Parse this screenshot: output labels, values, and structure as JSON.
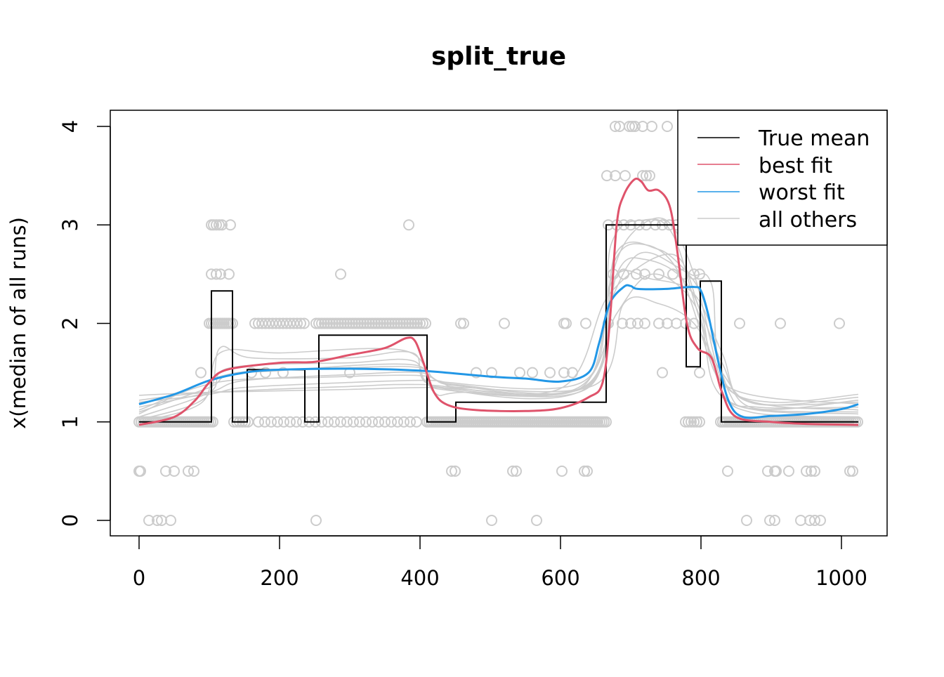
{
  "chart_data": {
    "type": "line",
    "title": "split_true",
    "xlabel": "",
    "ylabel": "x(median of all runs)",
    "xlim": [
      -48,
      1056
    ],
    "ylim": [
      -0.15,
      4.15
    ],
    "xticks": [
      0,
      200,
      400,
      600,
      800,
      1000
    ],
    "yticks": [
      0,
      1,
      2,
      3,
      4
    ],
    "grid": false,
    "legend": {
      "placement": "top-right",
      "entries": [
        {
          "label": "True mean",
          "color": "#000000"
        },
        {
          "label": "best fit",
          "color": "#DF536B"
        },
        {
          "label": "worst fit",
          "color": "#2297E6"
        },
        {
          "label": "all others",
          "color": "#CCCCCC"
        }
      ]
    },
    "true_mean": [
      [
        0,
        1
      ],
      [
        103,
        1
      ],
      [
        103,
        2.33
      ],
      [
        133,
        2.33
      ],
      [
        133,
        1
      ],
      [
        154,
        1
      ],
      [
        154,
        1.53
      ],
      [
        236,
        1.53
      ],
      [
        236,
        1
      ],
      [
        256,
        1
      ],
      [
        256,
        1.88
      ],
      [
        410,
        1.88
      ],
      [
        410,
        1
      ],
      [
        451,
        1
      ],
      [
        451,
        1.2
      ],
      [
        665,
        1.2
      ],
      [
        665,
        3
      ],
      [
        779,
        3
      ],
      [
        779,
        1.56
      ],
      [
        799,
        1.56
      ],
      [
        799,
        2.43
      ],
      [
        829,
        2.43
      ],
      [
        829,
        1
      ],
      [
        1024,
        1
      ]
    ],
    "best_fit": [
      [
        0,
        0.97
      ],
      [
        50,
        1.05
      ],
      [
        80,
        1.22
      ],
      [
        100,
        1.4
      ],
      [
        125,
        1.53
      ],
      [
        200,
        1.6
      ],
      [
        250,
        1.61
      ],
      [
        300,
        1.68
      ],
      [
        350,
        1.75
      ],
      [
        380,
        1.85
      ],
      [
        393,
        1.82
      ],
      [
        405,
        1.6
      ],
      [
        420,
        1.3
      ],
      [
        440,
        1.17
      ],
      [
        480,
        1.12
      ],
      [
        550,
        1.11
      ],
      [
        600,
        1.14
      ],
      [
        640,
        1.25
      ],
      [
        660,
        1.4
      ],
      [
        670,
        2.0
      ],
      [
        680,
        3.0
      ],
      [
        690,
        3.3
      ],
      [
        705,
        3.46
      ],
      [
        715,
        3.44
      ],
      [
        725,
        3.35
      ],
      [
        740,
        3.35
      ],
      [
        755,
        3.2
      ],
      [
        765,
        2.8
      ],
      [
        780,
        2.0
      ],
      [
        795,
        1.75
      ],
      [
        815,
        1.65
      ],
      [
        830,
        1.3
      ],
      [
        850,
        1.05
      ],
      [
        900,
        1.0
      ],
      [
        950,
        0.98
      ],
      [
        1024,
        0.97
      ]
    ],
    "worst_fit": [
      [
        0,
        1.18
      ],
      [
        50,
        1.28
      ],
      [
        100,
        1.42
      ],
      [
        150,
        1.5
      ],
      [
        200,
        1.53
      ],
      [
        300,
        1.54
      ],
      [
        400,
        1.52
      ],
      [
        500,
        1.46
      ],
      [
        550,
        1.44
      ],
      [
        600,
        1.41
      ],
      [
        640,
        1.5
      ],
      [
        655,
        1.8
      ],
      [
        670,
        2.2
      ],
      [
        690,
        2.37
      ],
      [
        700,
        2.38
      ],
      [
        710,
        2.35
      ],
      [
        750,
        2.35
      ],
      [
        790,
        2.37
      ],
      [
        800,
        2.33
      ],
      [
        810,
        2.1
      ],
      [
        825,
        1.6
      ],
      [
        840,
        1.2
      ],
      [
        860,
        1.05
      ],
      [
        900,
        1.06
      ],
      [
        950,
        1.08
      ],
      [
        1000,
        1.13
      ],
      [
        1024,
        1.18
      ]
    ],
    "all_others": [
      [
        [
          0,
          1.0
        ],
        [
          90,
          1.2
        ],
        [
          115,
          1.7
        ],
        [
          200,
          1.7
        ],
        [
          380,
          1.72
        ],
        [
          420,
          1.3
        ],
        [
          460,
          1.3
        ],
        [
          640,
          1.35
        ],
        [
          670,
          2.4
        ],
        [
          700,
          2.9
        ],
        [
          750,
          3.05
        ],
        [
          790,
          2.5
        ],
        [
          830,
          1.4
        ],
        [
          870,
          1.1
        ],
        [
          1024,
          1.05
        ]
      ],
      [
        [
          0,
          1.05
        ],
        [
          100,
          1.3
        ],
        [
          130,
          1.55
        ],
        [
          300,
          1.6
        ],
        [
          390,
          1.62
        ],
        [
          430,
          1.35
        ],
        [
          640,
          1.38
        ],
        [
          675,
          2.6
        ],
        [
          720,
          2.8
        ],
        [
          770,
          2.5
        ],
        [
          820,
          1.5
        ],
        [
          860,
          1.15
        ],
        [
          1024,
          1.1
        ]
      ],
      [
        [
          0,
          1.1
        ],
        [
          100,
          1.35
        ],
        [
          140,
          1.5
        ],
        [
          300,
          1.55
        ],
        [
          400,
          1.55
        ],
        [
          440,
          1.4
        ],
        [
          630,
          1.4
        ],
        [
          670,
          2.2
        ],
        [
          710,
          2.7
        ],
        [
          760,
          2.6
        ],
        [
          800,
          2.3
        ],
        [
          840,
          1.3
        ],
        [
          880,
          1.15
        ],
        [
          1024,
          1.15
        ]
      ],
      [
        [
          0,
          1.15
        ],
        [
          100,
          1.3
        ],
        [
          150,
          1.42
        ],
        [
          300,
          1.48
        ],
        [
          400,
          1.5
        ],
        [
          450,
          1.38
        ],
        [
          640,
          1.37
        ],
        [
          680,
          2.5
        ],
        [
          720,
          2.65
        ],
        [
          780,
          2.4
        ],
        [
          830,
          1.6
        ],
        [
          870,
          1.2
        ],
        [
          1024,
          1.2
        ]
      ],
      [
        [
          0,
          1.2
        ],
        [
          100,
          1.28
        ],
        [
          150,
          1.35
        ],
        [
          300,
          1.4
        ],
        [
          420,
          1.42
        ],
        [
          460,
          1.35
        ],
        [
          650,
          1.38
        ],
        [
          690,
          2.2
        ],
        [
          740,
          2.2
        ],
        [
          790,
          2.0
        ],
        [
          830,
          1.5
        ],
        [
          880,
          1.18
        ],
        [
          1024,
          1.25
        ]
      ],
      [
        [
          0,
          1.27
        ],
        [
          100,
          1.3
        ],
        [
          300,
          1.33
        ],
        [
          420,
          1.35
        ],
        [
          620,
          1.33
        ],
        [
          680,
          2.1
        ],
        [
          730,
          2.5
        ],
        [
          790,
          2.2
        ],
        [
          830,
          1.4
        ],
        [
          900,
          1.2
        ],
        [
          1024,
          1.28
        ]
      ],
      [
        [
          0,
          1.02
        ],
        [
          95,
          1.25
        ],
        [
          115,
          1.75
        ],
        [
          160,
          1.65
        ],
        [
          300,
          1.65
        ],
        [
          390,
          1.7
        ],
        [
          425,
          1.35
        ],
        [
          640,
          1.36
        ],
        [
          672,
          2.8
        ],
        [
          720,
          3.05
        ],
        [
          760,
          2.9
        ],
        [
          800,
          2.0
        ],
        [
          840,
          1.2
        ],
        [
          1024,
          1.08
        ]
      ],
      [
        [
          0,
          1.08
        ],
        [
          110,
          1.45
        ],
        [
          200,
          1.52
        ],
        [
          390,
          1.58
        ],
        [
          430,
          1.33
        ],
        [
          640,
          1.39
        ],
        [
          678,
          2.7
        ],
        [
          740,
          2.75
        ],
        [
          785,
          2.5
        ],
        [
          815,
          2.4
        ],
        [
          845,
          1.3
        ],
        [
          1024,
          1.12
        ]
      ],
      [
        [
          0,
          1.12
        ],
        [
          110,
          1.4
        ],
        [
          250,
          1.45
        ],
        [
          400,
          1.47
        ],
        [
          450,
          1.37
        ],
        [
          630,
          1.35
        ],
        [
          675,
          2.45
        ],
        [
          730,
          2.45
        ],
        [
          790,
          2.3
        ],
        [
          830,
          1.7
        ],
        [
          870,
          1.15
        ],
        [
          1024,
          1.22
        ]
      ],
      [
        [
          0,
          1.22
        ],
        [
          100,
          1.3
        ],
        [
          300,
          1.36
        ],
        [
          400,
          1.38
        ],
        [
          600,
          1.34
        ],
        [
          670,
          2.3
        ],
        [
          760,
          2.7
        ],
        [
          800,
          2.1
        ],
        [
          840,
          1.35
        ],
        [
          1024,
          1.18
        ]
      ]
    ],
    "points": [
      {
        "y": 4,
        "x": [
          678,
          684,
          698,
          702,
          706,
          717,
          730,
          752
        ]
      },
      {
        "y": 3.5,
        "x": [
          666,
          678,
          692,
          717,
          722,
          727
        ]
      },
      {
        "y": 3,
        "x": [
          103,
          106,
          110,
          114,
          118,
          130,
          384,
          668,
          680,
          690,
          700,
          712,
          722,
          735,
          745,
          755,
          765
        ]
      },
      {
        "y": 2.5,
        "x": [
          103,
          110,
          116,
          128,
          287,
          675,
          690,
          708,
          720,
          740,
          760,
          775,
          790,
          798
        ]
      },
      {
        "y": 2,
        "x": [
          458,
          462,
          520,
          605,
          608,
          636,
          668,
          688,
          700,
          710,
          720,
          740,
          752,
          765,
          778,
          790,
          855,
          913,
          997
        ]
      },
      {
        "y": 1.5,
        "x": [
          88,
          160,
          180,
          205,
          300,
          480,
          502,
          542,
          560,
          585,
          605,
          617,
          745,
          798
        ]
      },
      {
        "y": 0.5,
        "x": [
          0,
          2,
          38,
          50,
          70,
          78,
          445,
          450,
          532,
          537,
          602,
          634,
          638,
          838,
          895,
          905,
          907,
          925,
          950,
          957,
          962,
          1012,
          1016
        ]
      },
      {
        "y": 0,
        "x": [
          14,
          26,
          32,
          45,
          252,
          502,
          566,
          865,
          898,
          905,
          942,
          955,
          962,
          970
        ]
      }
    ],
    "point_ranges": [
      {
        "y": 2,
        "from": 100,
        "to": 135,
        "step": 3
      },
      {
        "y": 2,
        "from": 165,
        "to": 235,
        "step": 5
      },
      {
        "y": 2,
        "from": 252,
        "to": 410,
        "step": 4
      },
      {
        "y": 1,
        "from": 0,
        "to": 105,
        "step": 3
      },
      {
        "y": 1,
        "from": 135,
        "to": 155,
        "step": 4
      },
      {
        "y": 1,
        "from": 170,
        "to": 400,
        "step": 9
      },
      {
        "y": 1,
        "from": 410,
        "to": 665,
        "step": 3
      },
      {
        "y": 1,
        "from": 778,
        "to": 800,
        "step": 4
      },
      {
        "y": 1,
        "from": 828,
        "to": 1024,
        "step": 3
      }
    ]
  }
}
